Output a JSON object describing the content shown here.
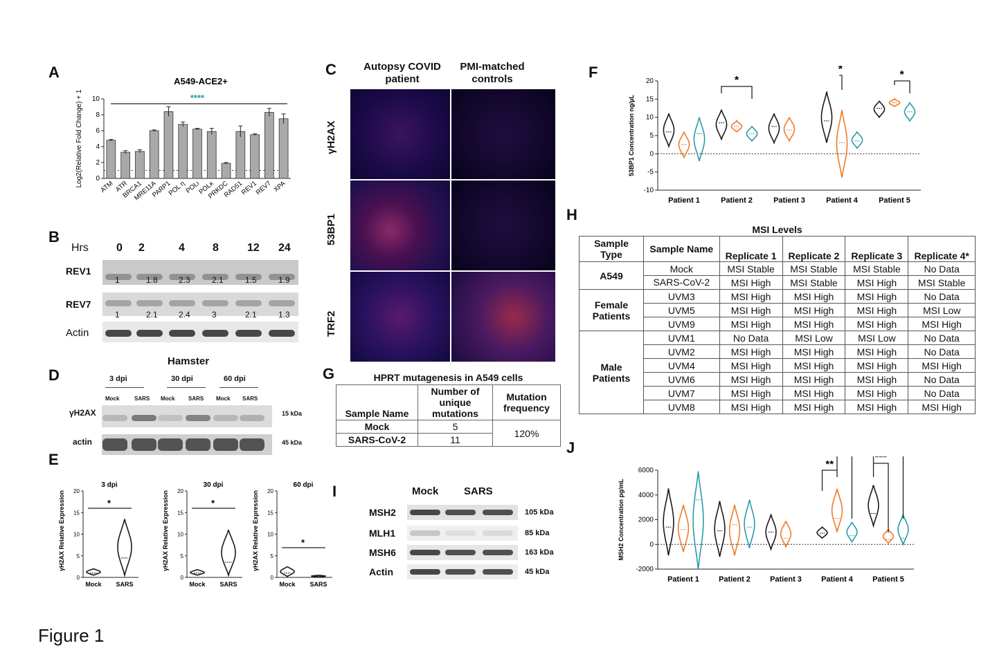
{
  "figure_caption": "Figure 1",
  "panels": {
    "A": "A",
    "B": "B",
    "C": "C",
    "D": "D",
    "E": "E",
    "F": "F",
    "G": "G",
    "H": "H",
    "I": "I",
    "J": "J"
  },
  "chart_data": [
    {
      "id": "A",
      "type": "bar",
      "title": "A549-ACE2+",
      "ylabel": "Log2(Relative Fold Change) + 1",
      "xlabel": "",
      "ylim": [
        0,
        10
      ],
      "yticks": [
        0,
        2,
        4,
        6,
        8,
        10
      ],
      "categories": [
        "ATM",
        "ATR",
        "BRCA1",
        "MRE11A",
        "PARP1",
        "POL η",
        "POLι",
        "POLκ",
        "PRKDC",
        "RAD51",
        "REV1",
        "REV7",
        "XPA"
      ],
      "values": [
        4.8,
        3.3,
        3.4,
        6.0,
        8.4,
        6.8,
        6.2,
        5.9,
        1.9,
        5.9,
        5.5,
        8.3,
        7.5
      ],
      "errors": [
        0.1,
        0.2,
        0.2,
        0.1,
        0.6,
        0.3,
        0.1,
        0.4,
        0.1,
        0.7,
        0.1,
        0.5,
        0.6
      ],
      "baseline": 1,
      "significance": "****"
    },
    {
      "id": "F",
      "type": "violin",
      "ylabel": "53BP1 Concentration ng/µL",
      "ylim": [
        -10,
        20
      ],
      "yticks": [
        -10,
        -5,
        0,
        5,
        10,
        15,
        20
      ],
      "categories": [
        "Patient 1",
        "Patient 2",
        "Patient 3",
        "Patient 4",
        "Patient 5"
      ],
      "series": [
        {
          "name": "black",
          "color": "#1a1a1a",
          "medians": [
            6,
            8.5,
            7.5,
            9,
            12.5
          ],
          "mins": [
            2,
            4,
            3,
            3,
            10
          ],
          "maxs": [
            11,
            12,
            11,
            17,
            14.5
          ]
        },
        {
          "name": "orange",
          "color": "#f07a2a",
          "medians": [
            2.5,
            7.5,
            6.5,
            3,
            14
          ],
          "mins": [
            -1,
            6,
            3.5,
            -6.5,
            13
          ],
          "maxs": [
            6,
            9,
            10,
            12,
            15
          ]
        },
        {
          "name": "teal",
          "color": "#2a9aa8",
          "medians": [
            5.5,
            5.5,
            null,
            3.5,
            11.5
          ],
          "mins": [
            -2,
            3.5,
            null,
            1.5,
            9
          ],
          "maxs": [
            10,
            7.5,
            null,
            6,
            14
          ]
        }
      ],
      "significance": [
        {
          "patient": "Patient 2",
          "label": "*"
        },
        {
          "patient": "Patient 4",
          "label": "*"
        },
        {
          "patient": "Patient 5",
          "label": "*"
        }
      ]
    },
    {
      "id": "J",
      "type": "violin",
      "ylabel": "MSH2 Concentration pg/mL",
      "ylim": [
        -2000,
        6000
      ],
      "yticks": [
        -2000,
        0,
        2000,
        4000,
        6000
      ],
      "categories": [
        "Patient 1",
        "Patient 2",
        "Patient 3",
        "Patient 4",
        "Patient 5"
      ],
      "series": [
        {
          "name": "black",
          "color": "#1a1a1a",
          "medians": [
            1400,
            1100,
            1000,
            900,
            2500
          ],
          "mins": [
            -900,
            -1000,
            -400,
            500,
            1500
          ],
          "maxs": [
            4500,
            3500,
            2400,
            1400,
            4800
          ]
        },
        {
          "name": "orange",
          "color": "#f07a2a",
          "medians": [
            1200,
            1600,
            500,
            2100,
            400
          ],
          "mins": [
            -600,
            -900,
            -200,
            1000,
            100
          ],
          "maxs": [
            3200,
            3200,
            1900,
            4500,
            1200
          ]
        },
        {
          "name": "teal",
          "color": "#2a9aa8",
          "medians": [
            3600,
            1400,
            null,
            700,
            500
          ],
          "mins": [
            -2000,
            -300,
            null,
            200,
            0
          ],
          "maxs": [
            5900,
            3600,
            null,
            1800,
            2400
          ]
        }
      ],
      "significance": [
        {
          "patient": "Patient 4",
          "label": "**"
        },
        {
          "patient": "Patient 4",
          "label": "**"
        },
        {
          "patient": "Patient 5",
          "label": "***"
        },
        {
          "patient": "Patient 5",
          "label": "**"
        }
      ]
    },
    {
      "id": "E1",
      "type": "violin",
      "title": "3 dpi",
      "ylabel": "γH2AX Relative Expression",
      "ylim": [
        0,
        20
      ],
      "yticks": [
        0,
        5,
        10,
        15,
        20
      ],
      "categories": [
        "Mock",
        "SARS"
      ],
      "medians": [
        1,
        4.5
      ],
      "mins": [
        0.5,
        0.5
      ],
      "maxs": [
        2,
        13.5
      ],
      "significance": "*"
    },
    {
      "id": "E2",
      "type": "violin",
      "title": "30 dpi",
      "ylabel": "γH2AX Relative Expression",
      "ylim": [
        0,
        20
      ],
      "yticks": [
        0,
        5,
        10,
        15,
        20
      ],
      "categories": [
        "Mock",
        "SARS"
      ],
      "medians": [
        1,
        3.5
      ],
      "mins": [
        0.5,
        0.5
      ],
      "maxs": [
        1.8,
        11
      ],
      "significance": "*"
    },
    {
      "id": "E3",
      "type": "violin",
      "title": "60 dpi",
      "ylabel": "γH2AX Relative Expression",
      "ylim": [
        0,
        20
      ],
      "yticks": [
        0,
        5,
        10,
        15,
        20
      ],
      "categories": [
        "Mock",
        "SARS"
      ],
      "medians": [
        1,
        0.3
      ],
      "mins": [
        0.2,
        0.1
      ],
      "maxs": [
        2.5,
        0.5
      ],
      "significance": "*"
    }
  ],
  "panel_B": {
    "hrs_label": "Hrs",
    "timepoints": [
      "0",
      "2",
      "4",
      "8",
      "12",
      "24"
    ],
    "rows": [
      {
        "label": "REV1",
        "values": [
          "1",
          "1.8",
          "2.3",
          "2.1",
          "1.5",
          "1.9"
        ]
      },
      {
        "label": "REV7",
        "values": [
          "1",
          "2.1",
          "2.4",
          "3",
          "2.1",
          "1.3"
        ]
      },
      {
        "label": "Actin",
        "values": []
      }
    ]
  },
  "panel_C": {
    "col1": "Autopsy COVID patient",
    "col2": "PMI-matched controls",
    "rows": [
      "γH2AX",
      "53BP1",
      "TRF2"
    ]
  },
  "panel_D": {
    "title": "Hamster",
    "groups": [
      "3 dpi",
      "30 dpi",
      "60 dpi"
    ],
    "lanes": [
      "Mock",
      "SARS",
      "Mock",
      "SARS",
      "Mock",
      "SARS"
    ],
    "rows": [
      {
        "label": "γH2AX",
        "size": "15 kDa"
      },
      {
        "label": "actin",
        "size": "45 kDa"
      }
    ]
  },
  "panel_G": {
    "title": "HPRT mutagenesis in A549 cells",
    "headers": [
      "Sample Name",
      "Number of unique mutations",
      "Mutation frequency"
    ],
    "rows": [
      {
        "name": "Mock",
        "count": "5"
      },
      {
        "name": "SARS-CoV-2",
        "count": "11"
      }
    ],
    "frequency": "120%"
  },
  "panel_H": {
    "title": "MSI Levels",
    "headers": [
      "Sample Type",
      "Sample Name",
      "Replicate 1",
      "Replicate 2",
      "Replicate 3",
      "Replicate 4*"
    ],
    "groups": [
      {
        "type": "A549",
        "rows": [
          [
            "Mock",
            "MSI Stable",
            "MSI Stable",
            "MSI Stable",
            "No Data"
          ],
          [
            "SARS-CoV-2",
            "MSI High",
            "MSI Stable",
            "MSI High",
            "MSI Stable"
          ]
        ]
      },
      {
        "type": "Female Patients",
        "rows": [
          [
            "UVM3",
            "MSI High",
            "MSI High",
            "MSI High",
            "No Data"
          ],
          [
            "UVM5",
            "MSI High",
            "MSI High",
            "MSI High",
            "MSI Low"
          ],
          [
            "UVM9",
            "MSI High",
            "MSI High",
            "MSI High",
            "MSI High"
          ]
        ]
      },
      {
        "type": "Male Patients",
        "rows": [
          [
            "UVM1",
            "No Data",
            "MSI Low",
            "MSI Low",
            "No Data"
          ],
          [
            "UVM2",
            "MSI High",
            "MSI High",
            "MSI High",
            "No Data"
          ],
          [
            "UVM4",
            "MSI High",
            "MSI High",
            "MSI High",
            "MSI High"
          ],
          [
            "UVM6",
            "MSI High",
            "MSI High",
            "MSI High",
            "No Data"
          ],
          [
            "UVM7",
            "MSI High",
            "MSI High",
            "MSI High",
            "No Data"
          ],
          [
            "UVM8",
            "MSI High",
            "MSI High",
            "MSI High",
            "MSI High"
          ]
        ]
      }
    ]
  },
  "panel_I": {
    "columns": [
      "Mock",
      "SARS"
    ],
    "rows": [
      {
        "label": "MSH2",
        "size": "105 kDa"
      },
      {
        "label": "MLH1",
        "size": "85 kDa"
      },
      {
        "label": "MSH6",
        "size": "163 kDa"
      },
      {
        "label": "Actin",
        "size": "45 kDa"
      }
    ]
  },
  "colors": {
    "black": "#1a1a1a",
    "orange": "#f07a2a",
    "teal": "#2a9aa8",
    "bar": "#a9a9a9",
    "sig_teal": "#2a9aa8"
  }
}
